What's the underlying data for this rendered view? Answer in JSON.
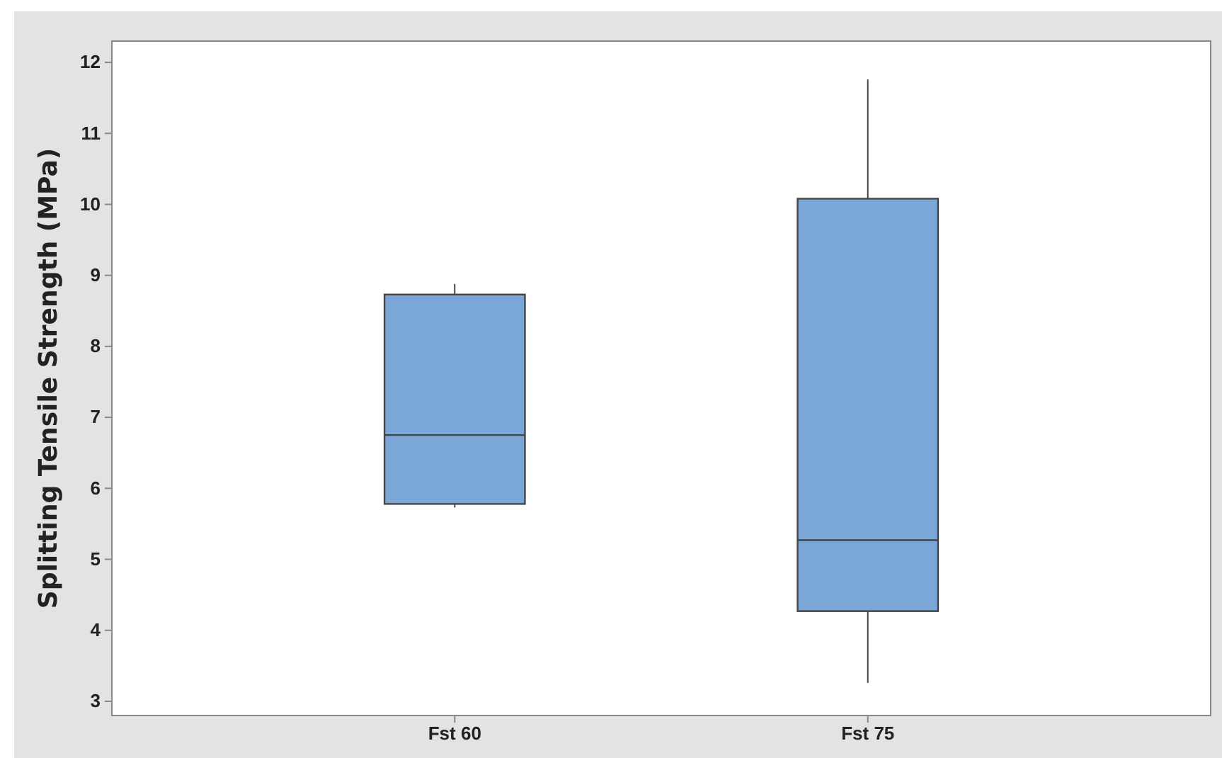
{
  "chart_data": {
    "type": "box",
    "ylabel": "Splitting Tensile Strength (MPa)",
    "categories": [
      "Fst 60",
      "Fst 75"
    ],
    "boxes": [
      {
        "low": 5.73,
        "q1": 5.78,
        "median": 6.75,
        "q3": 8.73,
        "high": 8.88
      },
      {
        "low": 3.26,
        "q1": 4.27,
        "median": 5.27,
        "q3": 10.08,
        "high": 11.76
      }
    ],
    "color": "#7ba6d8",
    "ylim": [
      2.8,
      12.3
    ],
    "yticks": [
      3,
      4,
      5,
      6,
      7,
      8,
      9,
      10,
      11,
      12
    ],
    "grid": false
  }
}
